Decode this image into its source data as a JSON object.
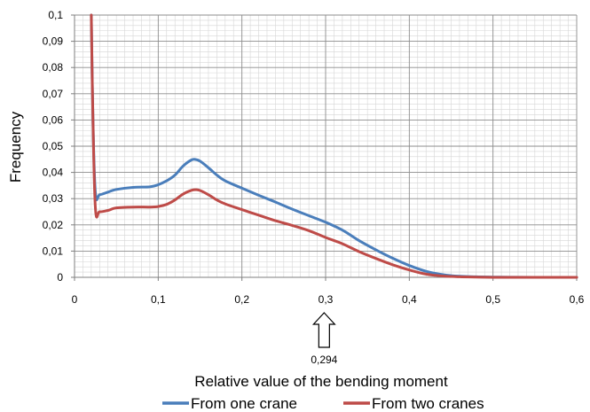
{
  "chart_data": {
    "type": "line",
    "xlabel": "Relative value of the bending moment",
    "ylabel": "Frequency",
    "xlim": [
      0,
      0.6
    ],
    "ylim": [
      0,
      0.1
    ],
    "x_ticks": [
      "0",
      "0,1",
      "0,2",
      "0,3",
      "0,4",
      "0,5",
      "0,6"
    ],
    "y_ticks": [
      "0",
      "0,01",
      "0,02",
      "0,03",
      "0,04",
      "0,05",
      "0,06",
      "0,07",
      "0,08",
      "0,09",
      "0,1"
    ],
    "grid": true,
    "legend_position": "bottom",
    "series": [
      {
        "name": "From one crane",
        "color": "#4a7ebb",
        "x": [
          0.02,
          0.022,
          0.025,
          0.03,
          0.04,
          0.05,
          0.07,
          0.09,
          0.1,
          0.11,
          0.12,
          0.13,
          0.14,
          0.145,
          0.15,
          0.16,
          0.17,
          0.18,
          0.2,
          0.22,
          0.24,
          0.26,
          0.28,
          0.3,
          0.32,
          0.34,
          0.36,
          0.38,
          0.4,
          0.42,
          0.44,
          0.46,
          0.48,
          0.5,
          0.52,
          0.55,
          0.6
        ],
        "y": [
          0.1,
          0.06,
          0.032,
          0.0315,
          0.0325,
          0.0335,
          0.0343,
          0.0345,
          0.0353,
          0.0368,
          0.039,
          0.0425,
          0.0448,
          0.0449,
          0.0443,
          0.0418,
          0.039,
          0.0368,
          0.034,
          0.0313,
          0.0287,
          0.026,
          0.0235,
          0.021,
          0.018,
          0.014,
          0.0105,
          0.0073,
          0.0045,
          0.0023,
          0.001,
          0.0004,
          0.0002,
          0.0001,
          5e-05,
          0.0,
          0.0
        ]
      },
      {
        "name": "From two cranes",
        "color": "#be4b48",
        "x": [
          0.02,
          0.022,
          0.025,
          0.03,
          0.04,
          0.05,
          0.07,
          0.09,
          0.1,
          0.11,
          0.12,
          0.13,
          0.14,
          0.145,
          0.15,
          0.16,
          0.17,
          0.18,
          0.2,
          0.22,
          0.24,
          0.26,
          0.28,
          0.3,
          0.32,
          0.34,
          0.36,
          0.38,
          0.4,
          0.42,
          0.44,
          0.46,
          0.48,
          0.5,
          0.52,
          0.55,
          0.6
        ],
        "y": [
          0.1,
          0.06,
          0.026,
          0.025,
          0.0255,
          0.0265,
          0.0268,
          0.0268,
          0.027,
          0.0278,
          0.0295,
          0.0318,
          0.0332,
          0.0334,
          0.0331,
          0.0315,
          0.0295,
          0.028,
          0.0258,
          0.0237,
          0.0216,
          0.0198,
          0.0178,
          0.0152,
          0.0128,
          0.0098,
          0.0072,
          0.0048,
          0.0028,
          0.0012,
          0.0005,
          0.0002,
          0.0001,
          0.0,
          0.0,
          0.0,
          0.0
        ]
      }
    ],
    "annotations": [
      {
        "text": "0,294",
        "x": 0.294,
        "type": "arrow-up"
      }
    ]
  }
}
